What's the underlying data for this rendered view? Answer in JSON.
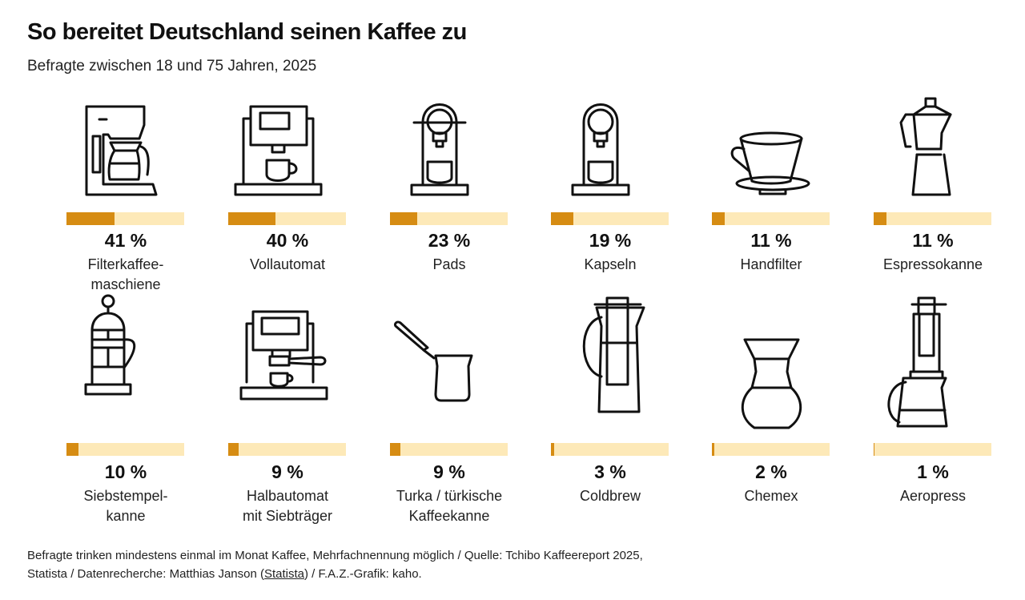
{
  "header": {
    "title": "So bereitet Deutschland seinen Kaffee zu",
    "subtitle": "Befragte zwischen 18 und 75 Jahren, 2025"
  },
  "chart_data": {
    "type": "bar",
    "title": "So bereitet Deutschland seinen Kaffee zu",
    "subtitle": "Befragte zwischen 18 und 75 Jahren, 2025",
    "unit": "%",
    "scale_max": 100,
    "bar_colors": {
      "fill": "#d68c13",
      "track": "#fde9b8"
    },
    "categories": [
      "Filterkaffee-\nmaschiene",
      "Vollautomat",
      "Pads",
      "Kapseln",
      "Handfilter",
      "Espressokanne",
      "Siebstempel-\nkanne",
      "Halbautomat\nmit Siebträger",
      "Turka / türkische\nKaffeekanne",
      "Coldbrew",
      "Chemex",
      "Aeropress"
    ],
    "values": [
      41,
      40,
      23,
      19,
      11,
      11,
      10,
      9,
      9,
      3,
      2,
      1
    ],
    "value_labels": [
      "41 %",
      "40 %",
      "23 %",
      "19 %",
      "11 %",
      "11 %",
      "10 %",
      "9 %",
      "9 %",
      "3 %",
      "2 %",
      "1 %"
    ],
    "icons": [
      "filter-coffee-machine-icon",
      "fully-automatic-machine-icon",
      "pad-machine-icon",
      "capsule-machine-icon",
      "hand-filter-icon",
      "moka-pot-icon",
      "french-press-icon",
      "portafilter-machine-icon",
      "cezve-icon",
      "cold-brew-icon",
      "chemex-icon",
      "aeropress-icon"
    ]
  },
  "footer": {
    "line1": "Befragte trinken mindestens einmal im Monat Kaffee, Mehrfachnennung möglich / Quelle: Tchibo Kaffeereport 2025,",
    "line2_before": "Statista / Datenrecherche: Matthias Janson (",
    "line2_link": "Statista",
    "line2_after": ") / F.A.Z.-Grafik: kaho."
  }
}
